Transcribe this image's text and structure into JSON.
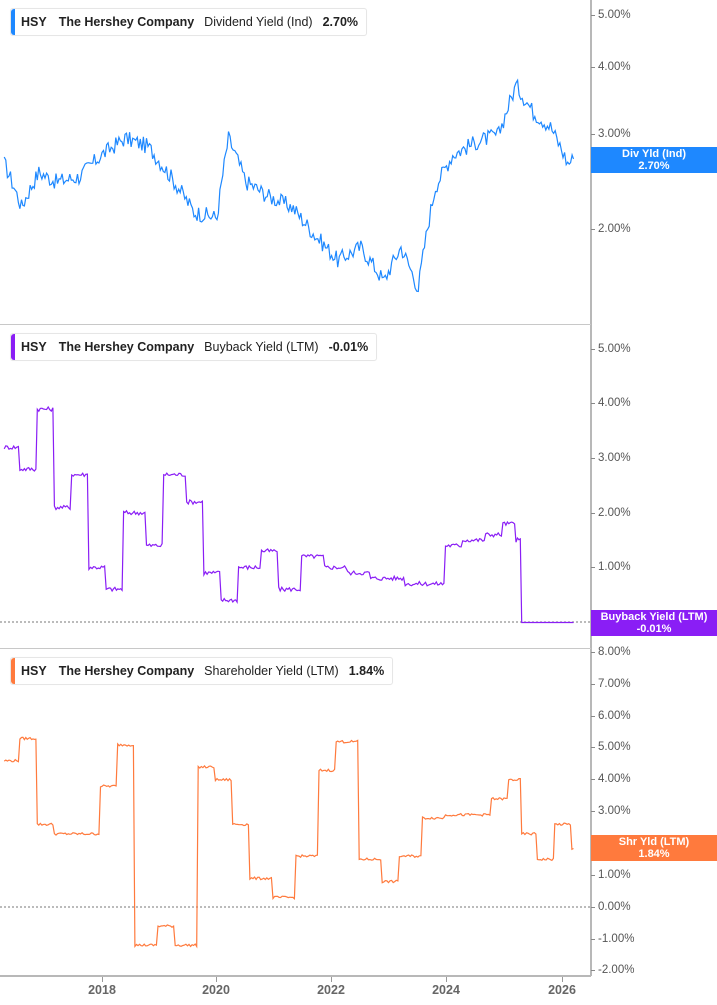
{
  "x_axis": {
    "labels": [
      "2018",
      "2020",
      "2022",
      "2024",
      "2026"
    ],
    "positions": [
      102,
      216,
      331,
      446,
      562
    ]
  },
  "panels": [
    {
      "ticker": "HSY",
      "company": "The Hershey Company",
      "metric": "Dividend Yield (Ind)",
      "value": "2.70%",
      "color": "#1E88FF",
      "tag_line1": "Div Yld (Ind)",
      "tag_line2": "2.70%",
      "y_labels": [
        "5.00%",
        "4.00%",
        "3.00%",
        "2.00%"
      ]
    },
    {
      "ticker": "HSY",
      "company": "The Hershey Company",
      "metric": "Buyback Yield (LTM)",
      "value": "-0.01%",
      "color": "#8A1EF5",
      "tag_line1": "Buyback Yield (LTM)",
      "tag_line2": "-0.01%",
      "y_labels": [
        "5.00%",
        "4.00%",
        "3.00%",
        "2.00%",
        "1.00%"
      ]
    },
    {
      "ticker": "HSY",
      "company": "The Hershey Company",
      "metric": "Shareholder Yield (LTM)",
      "value": "1.84%",
      "color": "#FF7A3D",
      "tag_line1": "Shr Yld (LTM)",
      "tag_line2": "1.84%",
      "y_labels": [
        "8.00%",
        "7.00%",
        "6.00%",
        "5.00%",
        "4.00%",
        "3.00%",
        "2.00%",
        "1.00%",
        "0.00%",
        "-1.00%",
        "-2.00%"
      ]
    }
  ],
  "chart_data": [
    {
      "type": "line",
      "title": "HSY The Hershey Company Dividend Yield (Ind) 2.70%",
      "xlabel": "",
      "ylabel": "Dividend Yield (%)",
      "ylim": [
        1.4,
        5.2
      ],
      "y_ticks": [
        2,
        3,
        4,
        5
      ],
      "x": [
        2016.3,
        2016.6,
        2016.9,
        2017.2,
        2017.6,
        2018.0,
        2018.4,
        2018.8,
        2019.2,
        2019.6,
        2020.0,
        2020.2,
        2020.5,
        2020.9,
        2021.3,
        2021.7,
        2022.1,
        2022.5,
        2022.9,
        2023.2,
        2023.5,
        2023.8,
        2024.1,
        2024.5,
        2024.9,
        2025.2,
        2025.5,
        2025.8,
        2026.1,
        2026.2
      ],
      "series": [
        {
          "name": "Dividend Yield (Ind)",
          "values": [
            2.65,
            2.2,
            2.55,
            2.45,
            2.5,
            2.75,
            2.95,
            2.85,
            2.5,
            2.15,
            2.1,
            2.95,
            2.45,
            2.3,
            2.2,
            1.95,
            1.75,
            1.85,
            1.6,
            1.85,
            1.55,
            2.4,
            2.75,
            2.9,
            3.0,
            3.7,
            3.3,
            3.1,
            2.65,
            2.7
          ]
        }
      ],
      "grid": false,
      "legend_position": "top-left"
    },
    {
      "type": "line",
      "title": "HSY The Hershey Company Buyback Yield (LTM) -0.01%",
      "xlabel": "",
      "ylabel": "Buyback Yield (%)",
      "ylim": [
        -0.1,
        5.3
      ],
      "y_ticks": [
        0,
        1,
        2,
        3,
        4,
        5
      ],
      "x": [
        2016.3,
        2016.6,
        2016.9,
        2017.2,
        2017.5,
        2017.8,
        2018.1,
        2018.4,
        2018.8,
        2019.1,
        2019.5,
        2019.8,
        2020.1,
        2020.4,
        2020.8,
        2021.1,
        2021.5,
        2021.9,
        2022.3,
        2022.7,
        2023.0,
        2023.3,
        2023.6,
        2024.0,
        2024.3,
        2024.7,
        2025.0,
        2025.2,
        2025.3,
        2026.2
      ],
      "series": [
        {
          "name": "Buyback Yield (LTM)",
          "values": [
            3.2,
            2.8,
            3.9,
            2.1,
            2.7,
            1.0,
            0.6,
            2.0,
            1.4,
            2.7,
            2.2,
            0.9,
            0.4,
            1.0,
            1.3,
            0.6,
            1.2,
            1.0,
            0.9,
            0.8,
            0.8,
            0.7,
            0.7,
            1.4,
            1.5,
            1.6,
            1.8,
            1.5,
            0.0,
            -0.01
          ]
        }
      ],
      "reference_line": 0,
      "grid": false,
      "legend_position": "top-left"
    },
    {
      "type": "line",
      "title": "HSY The Hershey Company Shareholder Yield (LTM) 1.84%",
      "xlabel": "",
      "ylabel": "Shareholder Yield (%)",
      "ylim": [
        -2,
        8
      ],
      "y_ticks": [
        -2,
        -1,
        0,
        1,
        2,
        3,
        4,
        5,
        6,
        7,
        8
      ],
      "x": [
        2016.3,
        2016.6,
        2016.9,
        2017.2,
        2017.6,
        2018.0,
        2018.3,
        2018.6,
        2019.0,
        2019.3,
        2019.7,
        2020.0,
        2020.3,
        2020.6,
        2021.0,
        2021.4,
        2021.8,
        2022.1,
        2022.5,
        2022.9,
        2023.2,
        2023.6,
        2024.0,
        2024.4,
        2024.8,
        2025.1,
        2025.3,
        2025.6,
        2025.9,
        2026.2
      ],
      "series": [
        {
          "name": "Shareholder Yield (LTM)",
          "values": [
            4.6,
            5.3,
            2.6,
            2.3,
            2.3,
            3.8,
            5.1,
            -1.2,
            -0.6,
            -1.2,
            4.4,
            4.0,
            2.6,
            0.9,
            0.3,
            1.6,
            4.3,
            5.2,
            1.5,
            0.8,
            1.6,
            2.8,
            2.9,
            2.9,
            3.4,
            4.0,
            2.3,
            1.5,
            2.6,
            1.84
          ]
        }
      ],
      "reference_line": 0,
      "grid": false,
      "legend_position": "top-left"
    }
  ]
}
